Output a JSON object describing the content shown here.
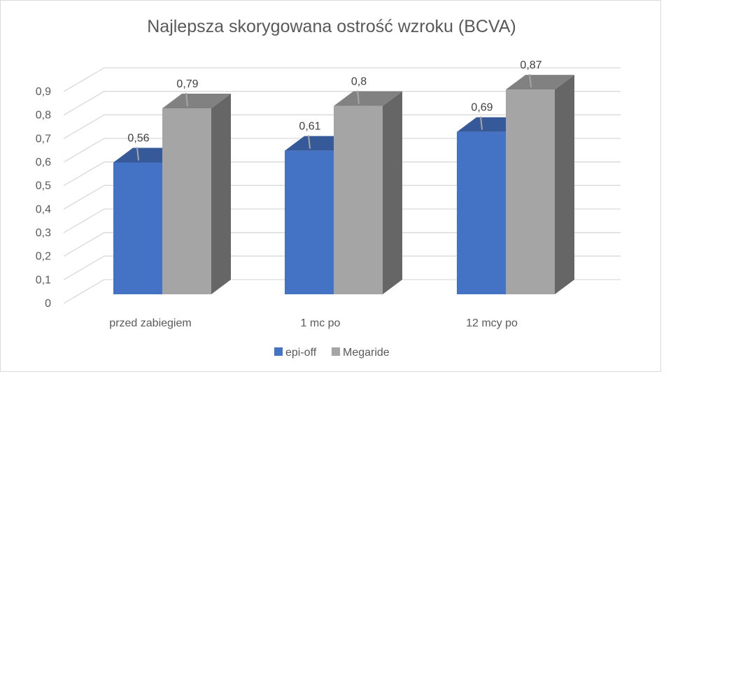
{
  "chart_data": {
    "type": "bar",
    "style": "3d-clustered-column",
    "title": "Najlepsza skorygowana ostrość wzroku (BCVA)",
    "categories": [
      "przed zabiegiem",
      "1 mc po",
      "12 mcy po"
    ],
    "series": [
      {
        "name": "epi-off",
        "values": [
          0.56,
          0.61,
          0.69
        ],
        "labels": [
          "0,56",
          "0,61",
          "0,69"
        ],
        "color": "#4472C4"
      },
      {
        "name": "Megaride",
        "values": [
          0.79,
          0.8,
          0.87
        ],
        "labels": [
          "0,79",
          "0,8",
          "0,87"
        ],
        "color": "#A5A5A5"
      }
    ],
    "y_ticks": [
      "0",
      "0,1",
      "0,2",
      "0,3",
      "0,4",
      "0,5",
      "0,6",
      "0,7",
      "0,8",
      "0,9"
    ],
    "ylim": [
      0,
      0.9
    ],
    "grid": true,
    "legend_position": "bottom"
  }
}
